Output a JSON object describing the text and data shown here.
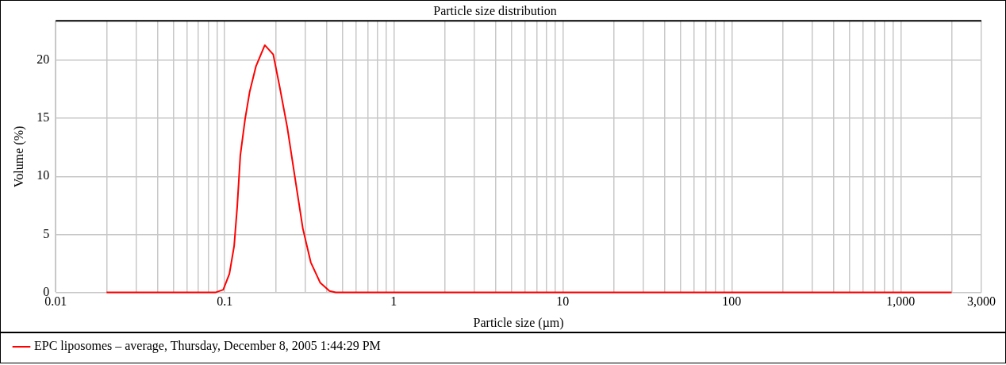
{
  "chart_data": {
    "type": "line",
    "title": "Particle size distribution",
    "xlabel": "Particle size (µm)",
    "ylabel": "Volume (%)",
    "series": [
      {
        "name": "EPC liposomes – average, Thursday, December 8, 2005 1:44:29 PM",
        "color": "#ff0000",
        "x": [
          0.02,
          0.088,
          0.098,
          0.1066,
          0.1137,
          0.1186,
          0.1237,
          0.1319,
          0.1406,
          0.1532,
          0.1727,
          0.1937,
          0.2109,
          0.2347,
          0.261,
          0.29,
          0.323,
          0.367,
          0.417,
          0.454,
          2000
        ],
        "values": [
          0,
          0,
          0.24,
          1.6,
          4,
          7.4,
          11.8,
          14.9,
          17.3,
          19.5,
          21.3,
          20.5,
          17.8,
          14.2,
          9.8,
          5.5,
          2.6,
          0.85,
          0.12,
          0,
          0
        ]
      }
    ],
    "log": "x",
    "xlim": [
      0.01,
      3000
    ],
    "xticks": [
      {
        "value": 0.01,
        "label": "0.01"
      },
      {
        "value": 0.02,
        "label": null
      },
      {
        "value": 0.03,
        "label": null
      },
      {
        "value": 0.04,
        "label": null
      },
      {
        "value": 0.05,
        "label": null
      },
      {
        "value": 0.06,
        "label": null
      },
      {
        "value": 0.07,
        "label": null
      },
      {
        "value": 0.08,
        "label": null
      },
      {
        "value": 0.09,
        "label": null
      },
      {
        "value": 0.1,
        "label": "0.1"
      },
      {
        "value": 0.2,
        "label": null
      },
      {
        "value": 0.3,
        "label": null
      },
      {
        "value": 0.4,
        "label": null
      },
      {
        "value": 0.5,
        "label": null
      },
      {
        "value": 0.6,
        "label": null
      },
      {
        "value": 0.7,
        "label": null
      },
      {
        "value": 0.8,
        "label": null
      },
      {
        "value": 0.9,
        "label": null
      },
      1,
      {
        "value": 2,
        "label": null
      },
      {
        "value": 3,
        "label": null
      },
      {
        "value": 4,
        "label": null
      },
      {
        "value": 5,
        "label": null
      },
      {
        "value": 6,
        "label": null
      },
      {
        "value": 7,
        "label": null
      },
      {
        "value": 8,
        "label": null
      },
      {
        "value": 9,
        "label": null
      },
      10,
      {
        "value": 20,
        "label": null
      },
      {
        "value": 30,
        "label": null
      },
      {
        "value": 40,
        "label": null
      },
      {
        "value": 50,
        "label": null
      },
      {
        "value": 60,
        "label": null
      },
      {
        "value": 70,
        "label": null
      },
      {
        "value": 80,
        "label": null
      },
      {
        "value": 90,
        "label": null
      },
      100,
      {
        "value": 200,
        "label": null
      },
      {
        "value": 300,
        "label": null
      },
      {
        "value": 400,
        "label": null
      },
      {
        "value": 500,
        "label": null
      },
      {
        "value": 600,
        "label": null
      },
      {
        "value": 700,
        "label": null
      },
      {
        "value": 800,
        "label": null
      },
      {
        "value": 900,
        "label": null
      },
      {
        "value": 1000,
        "label": "1,000"
      },
      {
        "value": 2000,
        "label": null
      },
      {
        "value": 3000,
        "label": "3,000"
      }
    ],
    "ylim": [
      0,
      23.4
    ],
    "yticks": [
      0,
      5,
      10,
      15,
      20
    ],
    "grid": true,
    "legend": "bottom left",
    "marker": "none",
    "line_style": "solid"
  }
}
